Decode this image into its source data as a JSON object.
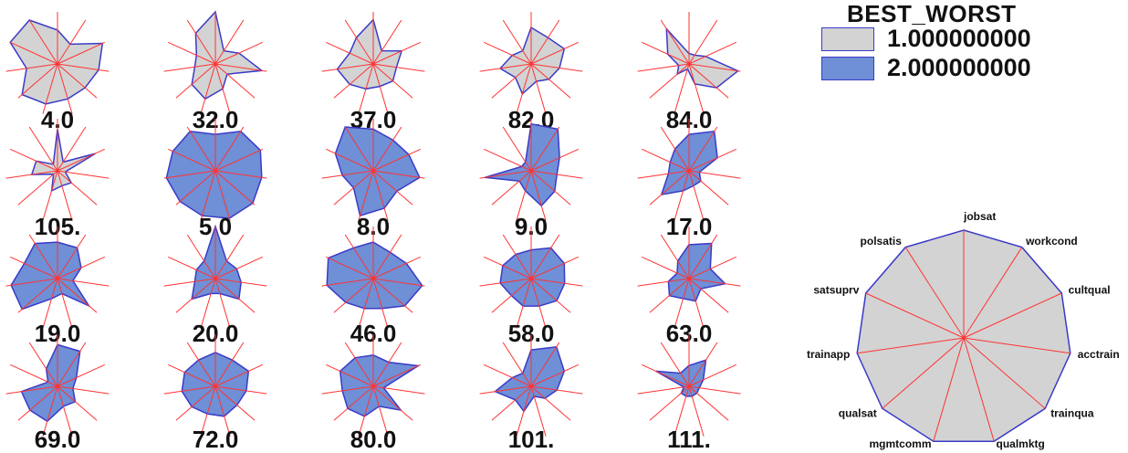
{
  "chart_data": {
    "type": "star",
    "legend": {
      "title": "BEST_WORST",
      "placement": "top-right",
      "entries": [
        {
          "label": "1.000000000",
          "fill": "#d3d3d3"
        },
        {
          "label": "2.000000000",
          "fill": "#6f8fd6"
        }
      ]
    },
    "variables": [
      "jobsat",
      "workcond",
      "cultqual",
      "acctrain",
      "trainqua",
      "qualmktg",
      "mgmtcomm",
      "qualsat",
      "trainapp",
      "satsuprv",
      "polsatis"
    ],
    "colors": {
      "outline": "#3a3ac8",
      "spoke": "#ff3333",
      "group1": "#d3d3d3",
      "group2": "#6f8fd6"
    },
    "cases": [
      {
        "label": "4.0",
        "group": 1,
        "values": [
          0.65,
          0.45,
          0.95,
          0.8,
          0.7,
          0.7,
          0.8,
          0.9,
          0.6,
          1.0,
          1.0
        ]
      },
      {
        "label": "32.0",
        "group": 1,
        "values": [
          1.0,
          0.3,
          0.5,
          0.9,
          0.3,
          0.5,
          0.7,
          0.6,
          0.4,
          0.4,
          0.7
        ]
      },
      {
        "label": "37.0",
        "group": 1,
        "values": [
          0.85,
          0.3,
          0.6,
          0.45,
          0.5,
          0.45,
          0.5,
          0.6,
          0.7,
          0.5,
          0.6
        ]
      },
      {
        "label": "82.0",
        "group": 1,
        "values": [
          0.7,
          0.6,
          0.7,
          0.55,
          0.45,
          0.35,
          0.6,
          0.4,
          0.6,
          0.4,
          0.3
        ]
      },
      {
        "label": "84.0",
        "group": 1,
        "values": [
          0.2,
          0.2,
          0.35,
          0.95,
          0.7,
          0.4,
          0.1,
          0.3,
          0.2,
          0.45,
          0.8
        ]
      },
      {
        "label": "105.",
        "group": 1,
        "values": [
          0.8,
          0.2,
          0.8,
          0.15,
          0.35,
          0.3,
          0.4,
          0.1,
          0.5,
          0.45,
          0.15
        ]
      },
      {
        "label": "5.0",
        "group": 2,
        "values": [
          0.7,
          0.9,
          0.95,
          0.9,
          0.95,
          0.95,
          0.9,
          0.9,
          0.95,
          0.9,
          0.9
        ]
      },
      {
        "label": "8.0",
        "group": 2,
        "values": [
          0.8,
          0.7,
          0.75,
          0.9,
          0.6,
          0.75,
          0.9,
          0.5,
          0.6,
          0.8,
          1.0
        ]
      },
      {
        "label": "9.0",
        "group": 2,
        "values": [
          0.9,
          0.95,
          0.6,
          0.5,
          0.6,
          0.7,
          0.4,
          0.3,
          0.9,
          0.2,
          0.2
        ]
      },
      {
        "label": "17.0",
        "group": 2,
        "values": [
          0.7,
          0.9,
          0.6,
          0.2,
          0.3,
          0.3,
          0.4,
          0.7,
          0.4,
          0.4,
          0.5
        ]
      },
      {
        "label": "19.0",
        "group": 2,
        "values": [
          0.7,
          0.7,
          0.5,
          0.3,
          0.8,
          0.3,
          0.4,
          0.9,
          0.9,
          0.7,
          0.8
        ]
      },
      {
        "label": "20.0",
        "group": 2,
        "values": [
          1.0,
          0.4,
          0.45,
          0.5,
          0.6,
          0.3,
          0.3,
          0.6,
          0.4,
          0.4,
          0.4
        ]
      },
      {
        "label": "46.0",
        "group": 2,
        "values": [
          0.7,
          0.6,
          0.7,
          0.95,
          0.8,
          0.6,
          0.6,
          0.7,
          0.9,
          0.95,
          0.7
        ]
      },
      {
        "label": "58.0",
        "group": 2,
        "values": [
          0.55,
          0.7,
          0.7,
          0.65,
          0.65,
          0.55,
          0.55,
          0.5,
          0.6,
          0.6,
          0.55
        ]
      },
      {
        "label": "63.0",
        "group": 2,
        "values": [
          0.65,
          0.8,
          0.45,
          0.7,
          0.3,
          0.45,
          0.4,
          0.5,
          0.4,
          0.25,
          0.4
        ]
      },
      {
        "label": "69.0",
        "group": 2,
        "values": [
          0.8,
          0.8,
          0.4,
          0.3,
          0.45,
          0.4,
          0.7,
          0.7,
          0.7,
          0.2,
          0.4
        ]
      },
      {
        "label": "72.0",
        "group": 2,
        "values": [
          0.65,
          0.6,
          0.7,
          0.6,
          0.55,
          0.6,
          0.55,
          0.6,
          0.65,
          0.65,
          0.6
        ]
      },
      {
        "label": "80.0",
        "group": 2,
        "values": [
          0.6,
          0.55,
          0.95,
          0.2,
          0.7,
          0.4,
          0.6,
          0.65,
          0.6,
          0.7,
          0.65
        ]
      },
      {
        "label": "101.",
        "group": 2,
        "values": [
          0.7,
          0.9,
          0.7,
          0.5,
          0.35,
          0.2,
          0.5,
          0.4,
          0.7,
          0.4,
          0.3
        ]
      },
      {
        "label": "111.",
        "group": 2,
        "values": [
          0.4,
          0.6,
          0.3,
          0.2,
          0.2,
          0.2,
          0.2,
          0.2,
          0.1,
          0.7,
          0.3
        ]
      }
    ]
  }
}
